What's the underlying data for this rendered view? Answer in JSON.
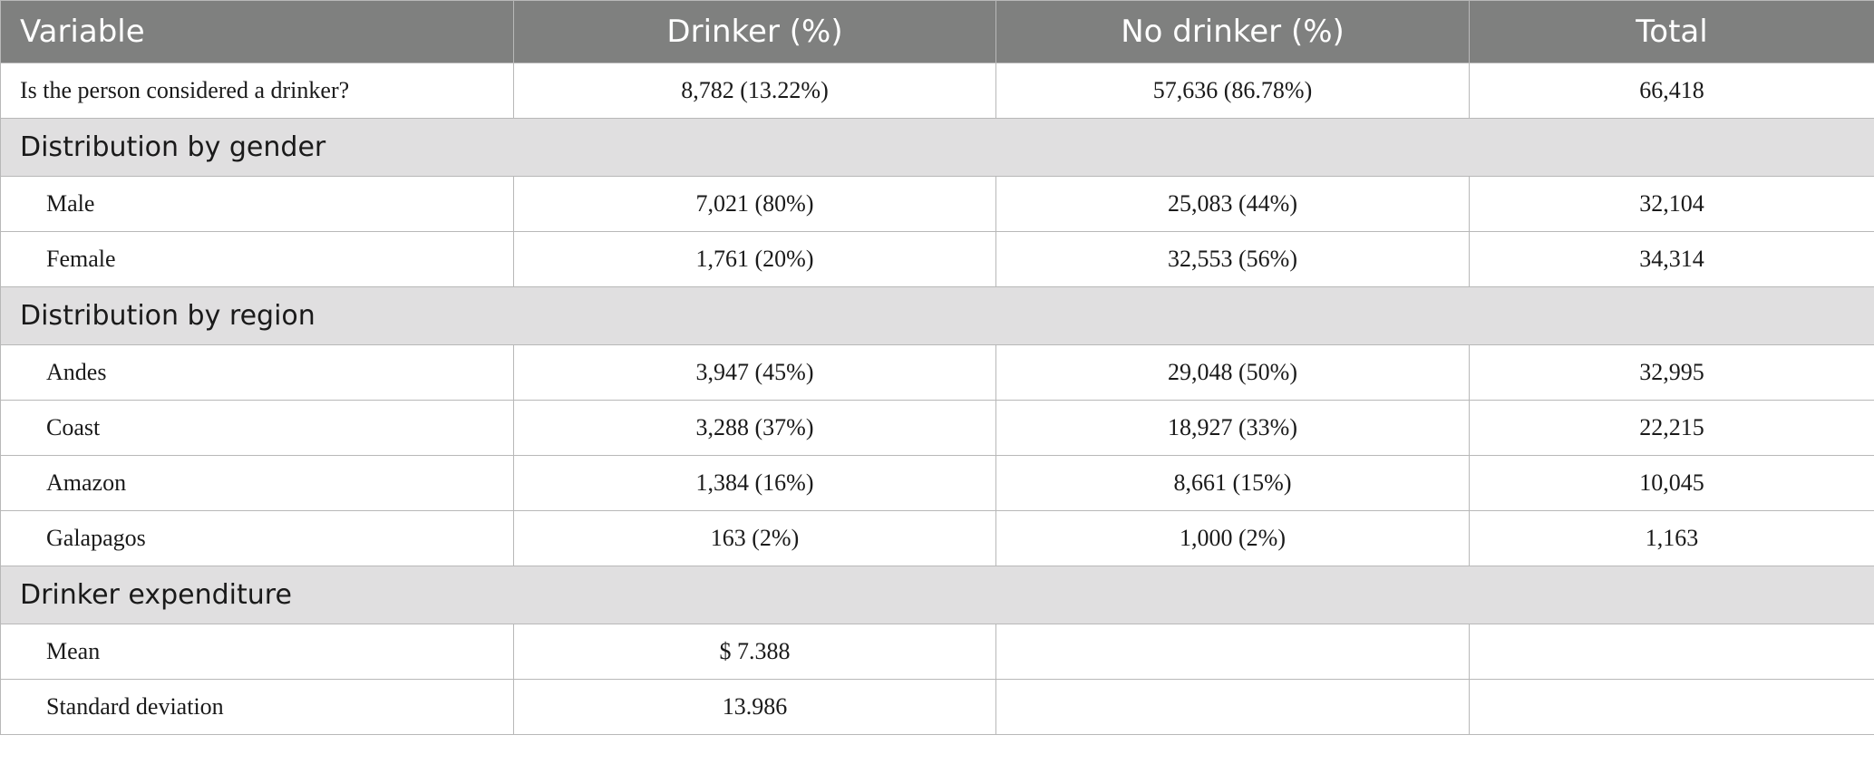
{
  "table": {
    "headers": [
      "Variable",
      "Drinker (%)",
      "No drinker (%)",
      "Total"
    ],
    "intro_row": {
      "label": "Is the person considered a drinker?",
      "drinker": "8,782 (13.22%)",
      "no_drinker": "57,636 (86.78%)",
      "total": "66,418"
    },
    "gender": {
      "title": "Distribution by gender",
      "rows": [
        {
          "label": "Male",
          "drinker": "7,021 (80%)",
          "no_drinker": "25,083 (44%)",
          "total": "32,104"
        },
        {
          "label": "Female",
          "drinker": "1,761 (20%)",
          "no_drinker": "32,553 (56%)",
          "total": "34,314"
        }
      ]
    },
    "region": {
      "title": "Distribution by region",
      "rows": [
        {
          "label": "Andes",
          "drinker": "3,947 (45%)",
          "no_drinker": "29,048 (50%)",
          "total": "32,995"
        },
        {
          "label": "Coast",
          "drinker": "3,288 (37%)",
          "no_drinker": "18,927 (33%)",
          "total": "22,215"
        },
        {
          "label": "Amazon",
          "drinker": "1,384 (16%)",
          "no_drinker": "8,661 (15%)",
          "total": "10,045"
        },
        {
          "label": "Galapagos",
          "drinker": "163 (2%)",
          "no_drinker": "1,000 (2%)",
          "total": "1,163"
        }
      ]
    },
    "expenditure": {
      "title": "Drinker expenditure",
      "rows": [
        {
          "label": "Mean",
          "drinker": "$ 7.388",
          "no_drinker": "",
          "total": ""
        },
        {
          "label": "Standard deviation",
          "drinker": "13.986",
          "no_drinker": "",
          "total": ""
        }
      ]
    },
    "colors": {
      "header_bg": "#7f807f",
      "header_text": "#ffffff",
      "section_bg": "#e0dfe0",
      "border": "#b8b8b8"
    }
  }
}
